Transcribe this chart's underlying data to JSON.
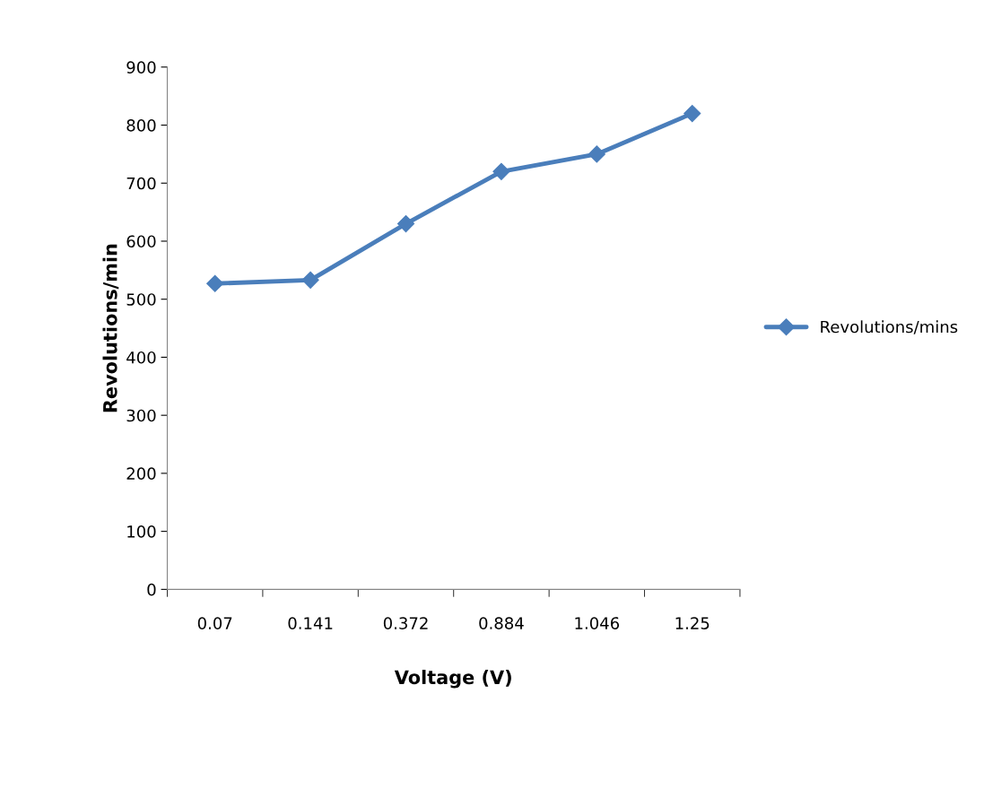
{
  "chart_data": {
    "type": "line",
    "xlabel": "Voltage (V)",
    "ylabel": "Revolutions/min",
    "categories": [
      "0.07",
      "0.141",
      "0.372",
      "0.884",
      "1.046",
      "1.25"
    ],
    "series": [
      {
        "name": "Revolutions/mins",
        "color": "#4a7ebb",
        "values": [
          527,
          533,
          630,
          720,
          750,
          820
        ]
      }
    ],
    "ylim": [
      0,
      900
    ],
    "yticks": [
      0,
      100,
      200,
      300,
      400,
      500,
      600,
      700,
      800,
      900
    ],
    "grid": false,
    "legend": "right",
    "marker": "diamond",
    "line_style": "solid"
  }
}
